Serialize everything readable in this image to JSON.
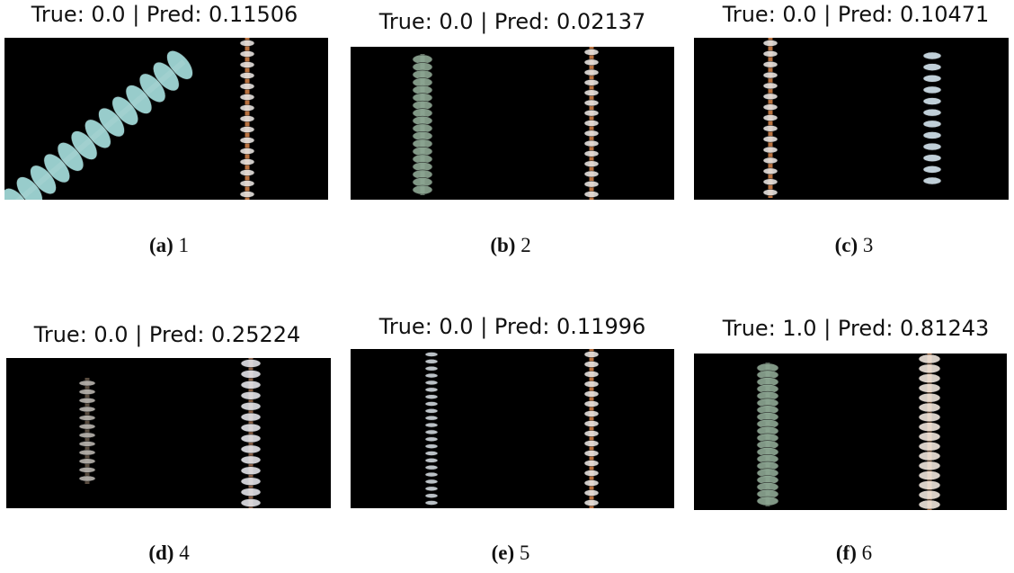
{
  "panels": [
    {
      "title": "True: 0.0 | Pred: 0.11506",
      "label": "(a)",
      "caption": "1"
    },
    {
      "title": "True: 0.0 | Pred: 0.02137",
      "label": "(b)",
      "caption": "2"
    },
    {
      "title": "True: 0.0 | Pred: 0.10471",
      "label": "(c)",
      "caption": "3"
    },
    {
      "title": "True: 0.0 | Pred: 0.25224",
      "label": "(d)",
      "caption": "4"
    },
    {
      "title": "True: 0.0 | Pred: 0.11996",
      "label": "(e)",
      "caption": "5"
    },
    {
      "title": "True: 1.0 | Pred: 0.81243",
      "label": "(f)",
      "caption": "6"
    }
  ]
}
